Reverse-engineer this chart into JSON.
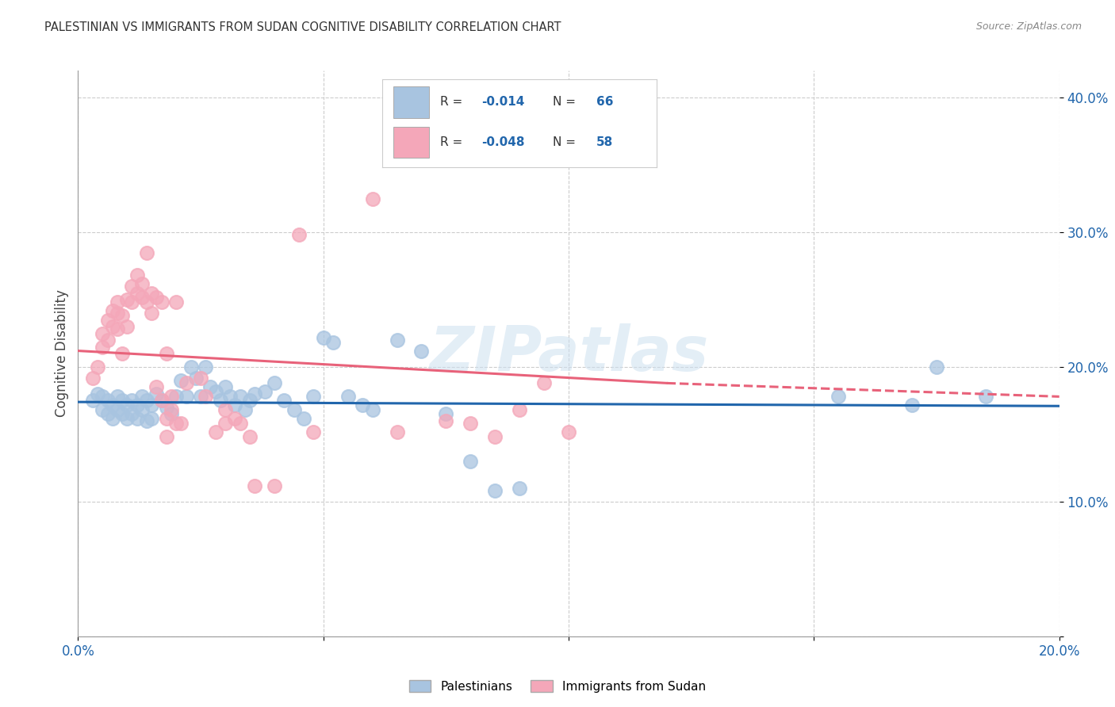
{
  "title": "PALESTINIAN VS IMMIGRANTS FROM SUDAN COGNITIVE DISABILITY CORRELATION CHART",
  "source": "Source: ZipAtlas.com",
  "ylabel": "Cognitive Disability",
  "xlim": [
    0.0,
    0.2
  ],
  "ylim": [
    0.0,
    0.42
  ],
  "yticks": [
    0.0,
    0.1,
    0.2,
    0.3,
    0.4
  ],
  "ytick_labels": [
    "",
    "10.0%",
    "20.0%",
    "30.0%",
    "40.0%"
  ],
  "xticks": [
    0.0,
    0.05,
    0.1,
    0.15,
    0.2
  ],
  "xtick_labels": [
    "0.0%",
    "",
    "",
    "",
    "20.0%"
  ],
  "blue_R": "-0.014",
  "blue_N": "66",
  "pink_R": "-0.048",
  "pink_N": "58",
  "blue_scatter_color": "#a8c4e0",
  "pink_scatter_color": "#f4a7b9",
  "blue_line_color": "#2166ac",
  "pink_line_color": "#e8627a",
  "legend_label_blue": "Palestinians",
  "legend_label_pink": "Immigrants from Sudan",
  "blue_points": [
    [
      0.003,
      0.175
    ],
    [
      0.004,
      0.18
    ],
    [
      0.005,
      0.178
    ],
    [
      0.005,
      0.168
    ],
    [
      0.006,
      0.175
    ],
    [
      0.006,
      0.165
    ],
    [
      0.007,
      0.172
    ],
    [
      0.007,
      0.162
    ],
    [
      0.008,
      0.178
    ],
    [
      0.008,
      0.168
    ],
    [
      0.009,
      0.175
    ],
    [
      0.009,
      0.165
    ],
    [
      0.01,
      0.172
    ],
    [
      0.01,
      0.162
    ],
    [
      0.011,
      0.175
    ],
    [
      0.011,
      0.165
    ],
    [
      0.012,
      0.172
    ],
    [
      0.012,
      0.162
    ],
    [
      0.013,
      0.178
    ],
    [
      0.013,
      0.168
    ],
    [
      0.014,
      0.175
    ],
    [
      0.014,
      0.16
    ],
    [
      0.015,
      0.172
    ],
    [
      0.015,
      0.162
    ],
    [
      0.016,
      0.18
    ],
    [
      0.017,
      0.175
    ],
    [
      0.018,
      0.17
    ],
    [
      0.019,
      0.165
    ],
    [
      0.02,
      0.178
    ],
    [
      0.021,
      0.19
    ],
    [
      0.022,
      0.178
    ],
    [
      0.023,
      0.2
    ],
    [
      0.024,
      0.192
    ],
    [
      0.025,
      0.178
    ],
    [
      0.026,
      0.2
    ],
    [
      0.027,
      0.185
    ],
    [
      0.028,
      0.182
    ],
    [
      0.029,
      0.175
    ],
    [
      0.03,
      0.185
    ],
    [
      0.031,
      0.178
    ],
    [
      0.032,
      0.172
    ],
    [
      0.033,
      0.178
    ],
    [
      0.034,
      0.168
    ],
    [
      0.035,
      0.175
    ],
    [
      0.036,
      0.18
    ],
    [
      0.038,
      0.182
    ],
    [
      0.04,
      0.188
    ],
    [
      0.042,
      0.175
    ],
    [
      0.044,
      0.168
    ],
    [
      0.046,
      0.162
    ],
    [
      0.048,
      0.178
    ],
    [
      0.05,
      0.222
    ],
    [
      0.052,
      0.218
    ],
    [
      0.055,
      0.178
    ],
    [
      0.058,
      0.172
    ],
    [
      0.06,
      0.168
    ],
    [
      0.065,
      0.22
    ],
    [
      0.07,
      0.212
    ],
    [
      0.075,
      0.165
    ],
    [
      0.08,
      0.13
    ],
    [
      0.085,
      0.108
    ],
    [
      0.09,
      0.11
    ],
    [
      0.155,
      0.178
    ],
    [
      0.17,
      0.172
    ],
    [
      0.175,
      0.2
    ],
    [
      0.185,
      0.178
    ]
  ],
  "pink_points": [
    [
      0.003,
      0.192
    ],
    [
      0.004,
      0.2
    ],
    [
      0.005,
      0.215
    ],
    [
      0.005,
      0.225
    ],
    [
      0.006,
      0.22
    ],
    [
      0.006,
      0.235
    ],
    [
      0.007,
      0.23
    ],
    [
      0.007,
      0.242
    ],
    [
      0.008,
      0.248
    ],
    [
      0.008,
      0.24
    ],
    [
      0.008,
      0.228
    ],
    [
      0.009,
      0.238
    ],
    [
      0.009,
      0.21
    ],
    [
      0.01,
      0.25
    ],
    [
      0.01,
      0.23
    ],
    [
      0.011,
      0.26
    ],
    [
      0.011,
      0.248
    ],
    [
      0.012,
      0.268
    ],
    [
      0.012,
      0.255
    ],
    [
      0.013,
      0.262
    ],
    [
      0.013,
      0.252
    ],
    [
      0.014,
      0.285
    ],
    [
      0.014,
      0.248
    ],
    [
      0.015,
      0.255
    ],
    [
      0.015,
      0.24
    ],
    [
      0.016,
      0.252
    ],
    [
      0.016,
      0.185
    ],
    [
      0.017,
      0.248
    ],
    [
      0.017,
      0.175
    ],
    [
      0.018,
      0.21
    ],
    [
      0.018,
      0.162
    ],
    [
      0.018,
      0.148
    ],
    [
      0.019,
      0.178
    ],
    [
      0.019,
      0.168
    ],
    [
      0.02,
      0.248
    ],
    [
      0.02,
      0.158
    ],
    [
      0.021,
      0.158
    ],
    [
      0.022,
      0.188
    ],
    [
      0.025,
      0.192
    ],
    [
      0.026,
      0.178
    ],
    [
      0.028,
      0.152
    ],
    [
      0.03,
      0.168
    ],
    [
      0.03,
      0.158
    ],
    [
      0.032,
      0.162
    ],
    [
      0.033,
      0.158
    ],
    [
      0.035,
      0.148
    ],
    [
      0.036,
      0.112
    ],
    [
      0.04,
      0.112
    ],
    [
      0.045,
      0.298
    ],
    [
      0.048,
      0.152
    ],
    [
      0.06,
      0.325
    ],
    [
      0.065,
      0.152
    ],
    [
      0.075,
      0.16
    ],
    [
      0.08,
      0.158
    ],
    [
      0.085,
      0.148
    ],
    [
      0.09,
      0.168
    ],
    [
      0.095,
      0.188
    ],
    [
      0.1,
      0.152
    ]
  ],
  "blue_trend": [
    0.0,
    0.2,
    0.174,
    0.171
  ],
  "pink_trend_solid": [
    0.0,
    0.12,
    0.212,
    0.188
  ],
  "pink_trend_dash": [
    0.12,
    0.2,
    0.188,
    0.178
  ]
}
